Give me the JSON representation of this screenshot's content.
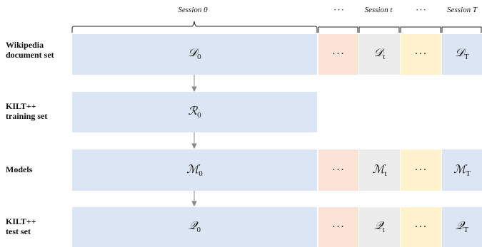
{
  "header": {
    "session_0": "Session 0",
    "session_t": "Session t",
    "session_T": "Session T",
    "ellipsis": "···"
  },
  "rows": [
    {
      "label": "Wikipedia\ndocument set",
      "sym": "𝒟",
      "s0": "0",
      "st": "t",
      "sT": "T",
      "dots": "···"
    },
    {
      "label": "KILT++\ntraining set",
      "sym": "ℛ",
      "s0": "0"
    },
    {
      "label": "Models",
      "sym": "ℳ",
      "s0": "0",
      "st": "t",
      "sT": "T",
      "dots": "···"
    },
    {
      "label": "KILT++\ntest set",
      "sym": "𝒬",
      "s0": "0",
      "st": "t",
      "sT": "T",
      "dots": "···"
    }
  ]
}
